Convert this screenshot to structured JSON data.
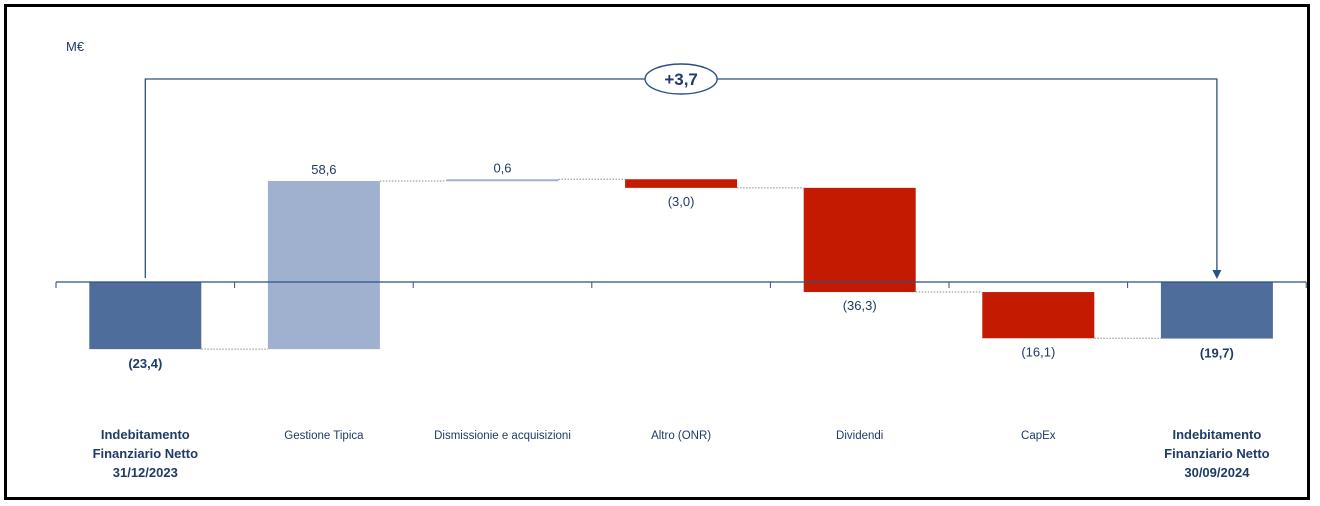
{
  "chart_data": {
    "type": "waterfall",
    "unit_label": "M€",
    "categories": [
      "Indebitamento Finanziario Netto 31/12/2023",
      "Gestione Tipica",
      "Dismissionie e acquisizioni",
      "Altro (ONR)",
      "Dividendi",
      "CapEx",
      "Indebitamento Finanziario Netto 30/09/2024"
    ],
    "category_lines": [
      [
        "Indebitamento",
        "Finanziario Netto",
        "31/12/2023"
      ],
      [
        "Gestione Tipica"
      ],
      [
        "Dismissionie e acquisizioni"
      ],
      [
        "Altro (ONR)"
      ],
      [
        "Dividendi"
      ],
      [
        "CapEx"
      ],
      [
        "Indebitamento",
        "Finanziario Netto",
        "30/09/2024"
      ]
    ],
    "category_bold": [
      true,
      false,
      false,
      false,
      false,
      false,
      true
    ],
    "values": [
      -23.4,
      58.6,
      0.6,
      -3.0,
      -36.3,
      -16.1,
      -19.7
    ],
    "value_labels": [
      "(23,4)",
      "58,6",
      "0,6",
      "(3,0)",
      "(36,3)",
      "(16,1)",
      "(19,7)"
    ],
    "bar_kinds": [
      "total",
      "increase",
      "increase",
      "decrease",
      "decrease",
      "decrease",
      "total"
    ],
    "delta_label": "+3,7",
    "colors": {
      "total": "#4e6d9a",
      "increase": "#a0b1cf",
      "decrease": "#c41a02",
      "text": "#1f3b66",
      "axis": "#2d4f84"
    }
  }
}
